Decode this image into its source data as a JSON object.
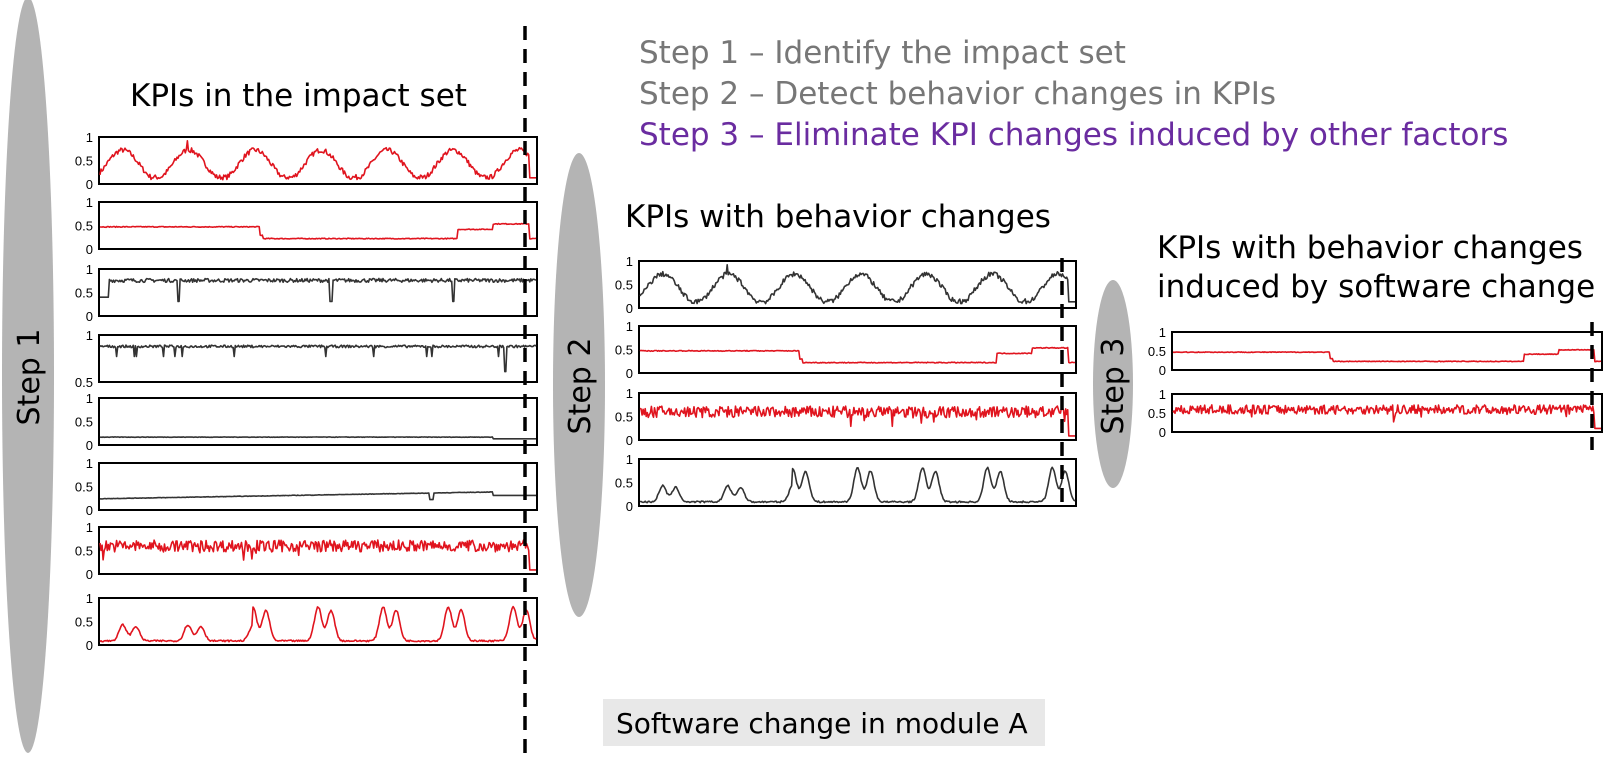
{
  "steps": {
    "step1": "Step 1 – Identify the impact set",
    "step2": "Step 2 – Detect behavior changes in KPIs",
    "step3": "Step 3 – Eliminate KPI changes induced by other factors",
    "color_done": "#777777",
    "color_current": "#6a2ca0"
  },
  "stages": [
    {
      "label": "Step 1",
      "heading": [
        "KPIs in the impact set"
      ]
    },
    {
      "label": "Step 2",
      "heading": [
        "KPIs with behavior changes"
      ]
    },
    {
      "label": "Step 3",
      "heading": [
        "KPIs with behavior changes",
        "induced by software change"
      ]
    }
  ],
  "footer": "Software change in module A",
  "colors": {
    "red": "#e0141e",
    "dark": "#333333",
    "ellipse": "#b4b4b4",
    "footer_bg": "#e8e8e8"
  },
  "kpi_charts": {
    "stage1": [
      {
        "pattern": "daily-periodic",
        "color": "red",
        "yticks": [
          "1",
          "0.5",
          "0"
        ]
      },
      {
        "pattern": "level-shift",
        "color": "red",
        "yticks": [
          "1",
          "0.5",
          "0"
        ]
      },
      {
        "pattern": "flat-high-spikes",
        "color": "dark",
        "yticks": [
          "1",
          "0.5",
          "0"
        ]
      },
      {
        "pattern": "flat-top-spikes",
        "color": "dark",
        "yticks": [
          "1",
          "0.5"
        ]
      },
      {
        "pattern": "flat-low",
        "color": "dark",
        "yticks": [
          "1",
          "0.5",
          "0"
        ]
      },
      {
        "pattern": "slow-ramp",
        "color": "dark",
        "yticks": [
          "1",
          "0.5",
          "0"
        ]
      },
      {
        "pattern": "noisy",
        "color": "red",
        "yticks": [
          "1",
          "0.5",
          "0"
        ]
      },
      {
        "pattern": "double-peak",
        "color": "red",
        "yticks": [
          "1",
          "0.5",
          "0"
        ]
      }
    ],
    "stage2": [
      {
        "pattern": "daily-periodic",
        "color": "dark",
        "yticks": [
          "1",
          "0.5",
          "0"
        ]
      },
      {
        "pattern": "level-shift",
        "color": "red",
        "yticks": [
          "1",
          "0.5",
          "0"
        ]
      },
      {
        "pattern": "noisy",
        "color": "red",
        "yticks": [
          "1",
          "0.5",
          "0"
        ]
      },
      {
        "pattern": "double-peak",
        "color": "dark",
        "yticks": [
          "1",
          "0.5",
          "0"
        ]
      }
    ],
    "stage3": [
      {
        "pattern": "level-shift",
        "color": "red",
        "yticks": [
          "1",
          "0.5",
          "0"
        ]
      },
      {
        "pattern": "noisy",
        "color": "red",
        "yticks": [
          "1",
          "0.5",
          "0"
        ]
      }
    ]
  }
}
